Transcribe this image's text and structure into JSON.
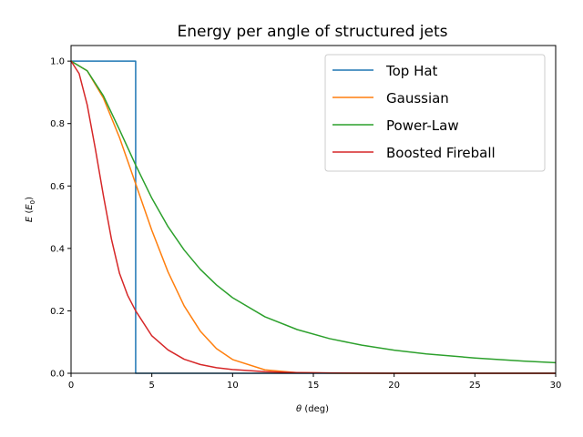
{
  "chart_data": {
    "type": "line",
    "title": "Energy per angle of structured jets",
    "xlabel_symbol": "θ",
    "xlabel_unit": " (deg)",
    "ylabel_main": "E",
    "ylabel_paren_open": " (",
    "ylabel_sym": "E",
    "ylabel_sub": "0",
    "ylabel_paren_close": ")",
    "xlim": [
      0,
      30
    ],
    "ylim": [
      0,
      1.05
    ],
    "xticks": [
      0,
      5,
      10,
      15,
      20,
      25,
      30
    ],
    "yticks": [
      0.0,
      0.2,
      0.4,
      0.6,
      0.8,
      1.0
    ],
    "xtick_labels": [
      "0",
      "5",
      "10",
      "15",
      "20",
      "25",
      "30"
    ],
    "ytick_labels": [
      "0.0",
      "0.2",
      "0.4",
      "0.6",
      "0.8",
      "1.0"
    ],
    "grid": false,
    "legend_position": "top-right",
    "series": [
      {
        "name": "Top Hat",
        "color": "#1f77b4",
        "x": [
          0,
          4,
          4,
          4.05,
          30
        ],
        "y": [
          1.0,
          1.0,
          0.0,
          0.0,
          0.0
        ]
      },
      {
        "name": "Gaussian",
        "color": "#ff7f0e",
        "x": [
          0,
          1,
          2,
          3,
          4,
          5,
          6,
          7,
          8,
          9,
          10,
          12,
          14,
          16,
          18,
          20,
          25,
          30
        ],
        "y": [
          1.0,
          0.969,
          0.882,
          0.755,
          0.607,
          0.458,
          0.325,
          0.216,
          0.135,
          0.079,
          0.044,
          0.011,
          0.002,
          0.0003,
          0.0,
          0.0,
          0.0,
          0.0
        ]
      },
      {
        "name": "Power-Law",
        "color": "#2ca02c",
        "x": [
          0,
          1,
          2,
          3,
          4,
          5,
          6,
          7,
          8,
          9,
          10,
          12,
          14,
          16,
          18,
          20,
          22,
          25,
          28,
          30
        ],
        "y": [
          1.0,
          0.969,
          0.889,
          0.78,
          0.667,
          0.561,
          0.47,
          0.395,
          0.333,
          0.283,
          0.242,
          0.181,
          0.14,
          0.111,
          0.09,
          0.074,
          0.062,
          0.049,
          0.039,
          0.034
        ]
      },
      {
        "name": "Boosted Fireball",
        "color": "#d62728",
        "x": [
          0,
          0.5,
          1,
          1.5,
          2,
          2.5,
          3,
          3.5,
          4,
          5,
          6,
          7,
          8,
          9,
          10,
          12,
          14,
          16,
          20,
          25,
          30
        ],
        "y": [
          1.0,
          0.96,
          0.86,
          0.72,
          0.57,
          0.43,
          0.32,
          0.25,
          0.2,
          0.12,
          0.075,
          0.045,
          0.028,
          0.018,
          0.012,
          0.005,
          0.002,
          0.001,
          0.0,
          0.0,
          0.0
        ]
      }
    ]
  }
}
